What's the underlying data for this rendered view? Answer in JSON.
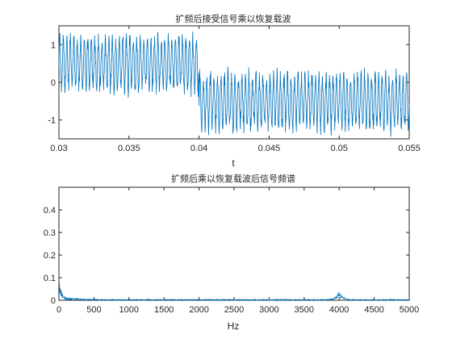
{
  "figure": {
    "background": "#ffffff",
    "axis_color": "#262626"
  },
  "chart_data": [
    {
      "type": "line",
      "title": "扩频后接受信号乘以恢复载波",
      "xlabel": "t",
      "ylabel": "",
      "xlim": [
        0.03,
        0.055
      ],
      "ylim": [
        -1.5,
        1.5
      ],
      "xticks": [
        0.03,
        0.035,
        0.04,
        0.045,
        0.05,
        0.055
      ],
      "xtick_labels": [
        "0.03",
        "0.035",
        "0.04",
        "0.045",
        "0.05",
        "0.055"
      ],
      "yticks": [
        -1,
        0,
        1
      ],
      "ytick_labels": [
        "-1",
        "0",
        "1"
      ],
      "grid": false,
      "series": [
        {
          "color": "#0072bd",
          "description_values": {
            "segment_1": {
              "x_range": [
                0.03,
                0.04
              ],
              "mean": 0.5,
              "spread": [
                -0.9,
                1.5
              ]
            },
            "segment_2": {
              "x_range": [
                0.04,
                0.055
              ],
              "mean": -0.5,
              "spread": [
                -1.5,
                0.6
              ]
            }
          }
        }
      ]
    },
    {
      "type": "line",
      "title": "扩频后乘以恢复载波后信号频谱",
      "xlabel": "Hz",
      "ylabel": "",
      "xlim": [
        0,
        5000
      ],
      "ylim": [
        0,
        0.5
      ],
      "xticks": [
        0,
        500,
        1000,
        1500,
        2000,
        2500,
        3000,
        3500,
        4000,
        4500,
        5000
      ],
      "xtick_labels": [
        "0",
        "500",
        "1000",
        "1500",
        "2000",
        "2500",
        "3000",
        "3500",
        "4000",
        "4500",
        "5000"
      ],
      "yticks": [
        0,
        0.1,
        0.2,
        0.3,
        0.4
      ],
      "ytick_labels": [
        "0",
        "0.1",
        "0.2",
        "0.3",
        "0.4"
      ],
      "grid": false,
      "series": [
        {
          "color": "#0072bd",
          "peaks": [
            {
              "x": 0,
              "y": 0.1
            },
            {
              "x": 4000,
              "y": 0.04
            }
          ]
        }
      ]
    }
  ]
}
